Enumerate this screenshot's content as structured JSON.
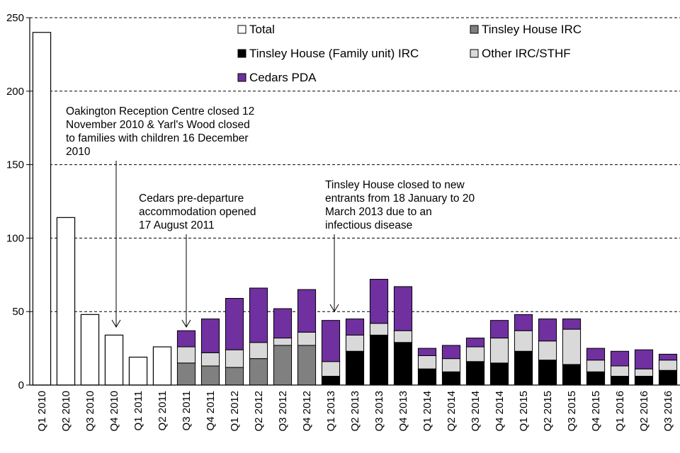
{
  "chart_data": {
    "type": "bar",
    "stacked": true,
    "categories": [
      "Q1 2010",
      "Q2 2010",
      "Q3 2010",
      "Q4 2010",
      "Q1 2011",
      "Q2 2011",
      "Q3 2011",
      "Q4 2011",
      "Q1 2012",
      "Q2 2012",
      "Q3 2012",
      "Q4 2012",
      "Q1 2013",
      "Q2 2013",
      "Q3 2013",
      "Q4 2013",
      "Q1 2014",
      "Q2 2014",
      "Q3 2014",
      "Q4 2014",
      "Q1 2015",
      "Q2 2015",
      "Q3 2015",
      "Q4 2015",
      "Q1 2016",
      "Q2 2016",
      "Q3 2016"
    ],
    "series": [
      {
        "name": "Total",
        "color": "#ffffff",
        "values": [
          240,
          114,
          48,
          34,
          19,
          26,
          null,
          null,
          null,
          null,
          null,
          null,
          null,
          null,
          null,
          null,
          null,
          null,
          null,
          null,
          null,
          null,
          null,
          null,
          null,
          null,
          null
        ]
      },
      {
        "name": "Tinsley House (Family unit) IRC",
        "color": "#000000",
        "values": [
          0,
          0,
          0,
          0,
          0,
          0,
          0,
          0,
          0,
          0,
          0,
          0,
          6,
          23,
          34,
          29,
          11,
          9,
          16,
          15,
          23,
          17,
          14,
          9,
          6,
          6,
          10
        ]
      },
      {
        "name": "Tinsley House IRC",
        "color": "#808080",
        "values": [
          0,
          0,
          0,
          0,
          0,
          0,
          15,
          13,
          12,
          18,
          27,
          27,
          0,
          0,
          0,
          0,
          0,
          0,
          0,
          0,
          0,
          0,
          0,
          0,
          0,
          0,
          0
        ]
      },
      {
        "name": "Other IRC/STHF",
        "color": "#d9d9d9",
        "values": [
          0,
          0,
          0,
          0,
          0,
          0,
          11,
          9,
          12,
          11,
          5,
          9,
          10,
          11,
          8,
          8,
          9,
          9,
          10,
          17,
          14,
          13,
          24,
          8,
          7,
          5,
          7
        ]
      },
      {
        "name": "Cedars PDA",
        "color": "#7030a0",
        "values": [
          0,
          0,
          0,
          0,
          0,
          0,
          11,
          23,
          35,
          37,
          20,
          29,
          28,
          11,
          30,
          30,
          5,
          9,
          6,
          12,
          11,
          15,
          7,
          8,
          10,
          13,
          4
        ]
      }
    ],
    "legend_order": [
      "Total",
      "Tinsley House IRC",
      "Tinsley House (Family unit) IRC",
      "Other IRC/STHF",
      "Cedars PDA"
    ],
    "ylim": [
      0,
      250
    ],
    "yticks": [
      0,
      50,
      100,
      150,
      200,
      250
    ],
    "gridlines": "dashed horizontal",
    "title": "",
    "xlabel": "",
    "ylabel": "",
    "annotations": [
      {
        "lines": [
          "Oakington Reception Centre closed 12",
          "November 2010 & Yarl's Wood closed",
          "to families with children 16 December",
          "2010"
        ],
        "points_to": "Q4 2010"
      },
      {
        "lines": [
          "Cedars pre-departure",
          "accommodation  opened",
          "17 August 2011"
        ],
        "points_to": "Q3 2011"
      },
      {
        "lines": [
          "Tinsley House closed to new",
          "entrants from 18 January to 20",
          "March 2013 due to an",
          "infectious disease"
        ],
        "points_to": "Q1 2013"
      }
    ]
  }
}
